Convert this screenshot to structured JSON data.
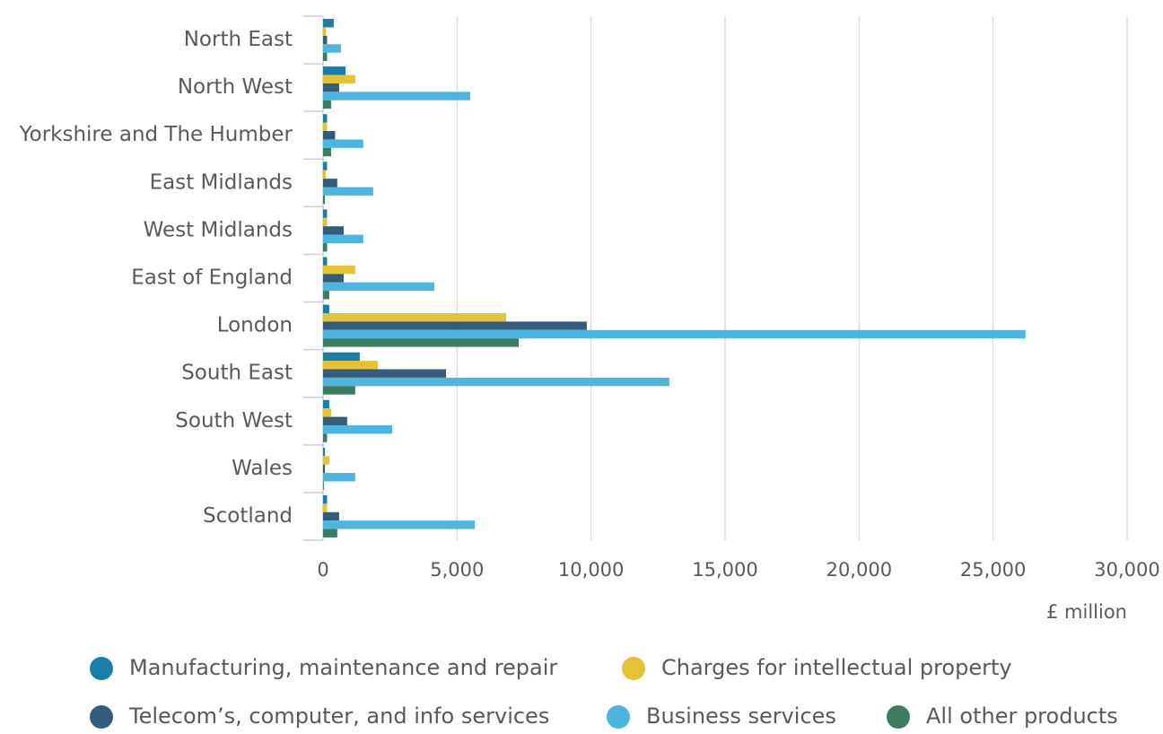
{
  "chart_data": {
    "type": "hbar",
    "categories": [
      "North East",
      "North West",
      "Yorkshire and The Humber",
      "East Midlands",
      "West Midlands",
      "East of England",
      "London",
      "South East",
      "South West",
      "Wales",
      "Scotland"
    ],
    "series": [
      {
        "name": "Manufacturing, maintenance and repair",
        "color": "#1a7fa8",
        "values": [
          400,
          840,
          150,
          150,
          150,
          150,
          230,
          1370,
          230,
          70,
          150
        ]
      },
      {
        "name": "Charges for intellectual property",
        "color": "#e5c233",
        "values": [
          100,
          1200,
          150,
          100,
          150,
          1200,
          6830,
          2040,
          300,
          230,
          150
        ]
      },
      {
        "name": "Telecom’s, computer, and info services",
        "color": "#335c7d",
        "values": [
          150,
          600,
          450,
          530,
          770,
          770,
          9840,
          4590,
          900,
          70,
          600
        ]
      },
      {
        "name": "Business services",
        "color": "#4cb6df",
        "values": [
          670,
          5490,
          1500,
          1870,
          1500,
          4150,
          26210,
          12920,
          2580,
          1200,
          5660
        ]
      },
      {
        "name": "All other products",
        "color": "#3d7c5e",
        "values": [
          150,
          300,
          300,
          70,
          150,
          230,
          7300,
          1200,
          150,
          30,
          530
        ]
      }
    ],
    "xlabel": "£ million",
    "xlim": [
      0,
      30000
    ],
    "xticks": [
      0,
      {
        "value": 5000,
        "label": "5,000"
      },
      {
        "value": 10000,
        "label": "10,000"
      },
      {
        "value": 15000,
        "label": "15,000"
      },
      {
        "value": 20000,
        "label": "20,000"
      },
      {
        "value": 25000,
        "label": "25,000"
      },
      {
        "value": 30000,
        "label": "30,000"
      }
    ],
    "grid": true
  }
}
